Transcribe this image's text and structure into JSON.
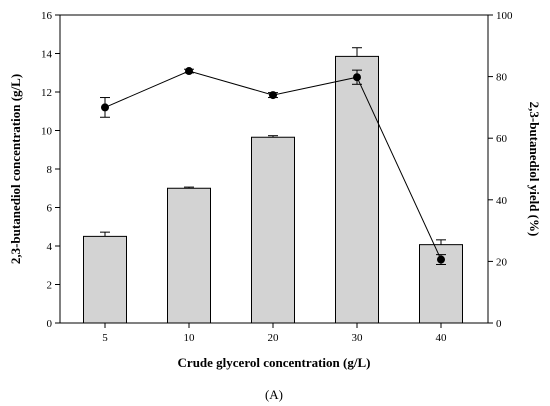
{
  "chart_data": {
    "type": "bar",
    "categories": [
      "5",
      "10",
      "20",
      "30",
      "40"
    ],
    "series": [
      {
        "kind": "bar",
        "axis": "left",
        "values": [
          4.5,
          7.0,
          9.65,
          13.85,
          4.07
        ],
        "errors": [
          0.22,
          0.06,
          0.08,
          0.45,
          0.25
        ],
        "color": "#d3d3d3"
      },
      {
        "kind": "line",
        "axis": "right",
        "values": [
          70.0,
          81.8,
          74.0,
          79.8,
          20.6
        ],
        "errors": [
          3.2,
          0.6,
          0.8,
          2.3,
          1.6
        ],
        "color": "#000000"
      }
    ],
    "xlabel": "Crude glycerol concentration (g/L)",
    "ylabel": "2,3-butanediol concentration (g/L)",
    "y2label": "2,3-butanediol yield (%)",
    "ylim": [
      0,
      16
    ],
    "y2lim": [
      0,
      100
    ],
    "yticks": [
      0,
      2,
      4,
      6,
      8,
      10,
      12,
      14,
      16
    ],
    "y2ticks": [
      0,
      20,
      40,
      60,
      80,
      100
    ],
    "grid": false,
    "legend": "none",
    "caption": "(A)"
  }
}
